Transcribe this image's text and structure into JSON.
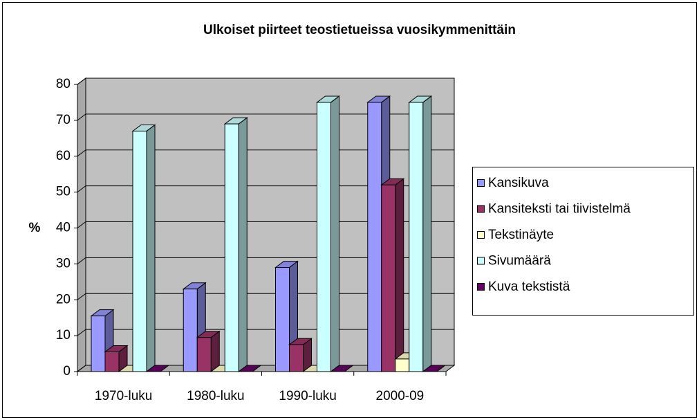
{
  "chart_data": {
    "type": "bar3d",
    "title": "Ulkoiset piirteet teostietueissa vuosikymmenittäin",
    "ylabel": "%",
    "categories": [
      "1970-luku",
      "1980-luku",
      "1990-luku",
      "2000-09"
    ],
    "series": [
      {
        "name": "Kansikuva",
        "color": "#9999ff",
        "values": [
          15.5,
          23,
          29,
          75
        ]
      },
      {
        "name": "Kansiteksti tai tiivistelmä",
        "color": "#993366",
        "values": [
          5.5,
          9.5,
          7.5,
          52
        ]
      },
      {
        "name": "Tekstinäyte",
        "color": "#ffffcc",
        "values": [
          0,
          0,
          0,
          3.5
        ]
      },
      {
        "name": "Sivumäärä",
        "color": "#ccffff",
        "values": [
          67,
          69,
          75,
          75
        ]
      },
      {
        "name": "Kuva tekstistä",
        "color": "#660066",
        "values": [
          0,
          0,
          0,
          0
        ]
      }
    ],
    "ylim": [
      0,
      80
    ],
    "yticks": [
      0,
      10,
      20,
      30,
      40,
      50,
      60,
      70,
      80
    ],
    "grid": true,
    "legend": "right"
  }
}
